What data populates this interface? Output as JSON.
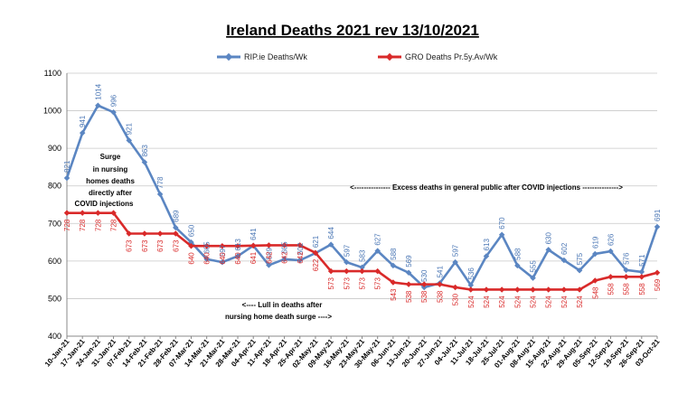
{
  "chart_data": {
    "type": "line",
    "title": "Ireland Deaths 2021 rev 13/10/2021",
    "ylim": [
      400,
      1100
    ],
    "yticks": [
      400,
      500,
      600,
      700,
      800,
      900,
      1000,
      1100
    ],
    "grid": true,
    "legend_position": "top",
    "categories": [
      "10-Jan-21",
      "17-Jan-21",
      "24-Jan-21",
      "31-Jan-21",
      "07-Feb-21",
      "14-Feb-21",
      "21-Feb-21",
      "28-Feb-21",
      "07-Mar-21",
      "14-Mar-21",
      "21-Mar-21",
      "28-Mar-21",
      "04-Apr-21",
      "11-Apr-21",
      "18-Apr-21",
      "25-Apr-21",
      "02-May-21",
      "09-May-21",
      "16-May-21",
      "23-May-21",
      "30-May-21",
      "06-Jun-21",
      "13-Jun-21",
      "20-Jun-21",
      "27-Jun-21",
      "04-Jul-21",
      "11-Jul-21",
      "18-Jul-21",
      "25-Jul-21",
      "01-Aug-21",
      "08-Aug-21",
      "15-Aug-21",
      "22-Aug-21",
      "29-Aug-21",
      "05-Sep-21",
      "12-Sep-21",
      "19-Sep-21",
      "26-Sep-21",
      "03-Oct-21"
    ],
    "series": [
      {
        "name": "RIP.ie Deaths/Wk",
        "color": "#5b86c2",
        "values": [
          821,
          941,
          1014,
          996,
          921,
          863,
          778,
          689,
          650,
          605,
          597,
          613,
          641,
          589,
          605,
          602,
          621,
          644,
          597,
          583,
          627,
          588,
          569,
          530,
          541,
          597,
          536,
          613,
          670,
          588,
          555,
          630,
          602,
          575,
          619,
          626,
          576,
          571,
          691
        ]
      },
      {
        "name": "GRO Deaths Pr.5y.Av/Wk",
        "color": "#d92a2a",
        "values": [
          728,
          728,
          728,
          728,
          673,
          673,
          673,
          673,
          640,
          640,
          640,
          640,
          641,
          642,
          642,
          642,
          622,
          573,
          573,
          573,
          573,
          543,
          538,
          538,
          538,
          530,
          524,
          524,
          524,
          524,
          524,
          524,
          524,
          524,
          548,
          558,
          558,
          558,
          569
        ]
      }
    ],
    "annotations": {
      "surge_lines": [
        "Surge",
        "in nursing",
        "homes deaths",
        "directly after",
        "COVID injections"
      ],
      "excess": "<--------------- Excess deaths in general public after COVID injections --------------->",
      "lull_line1": "<---- Lull in deaths after",
      "lull_line2": "nursing home death surge ---->"
    }
  }
}
